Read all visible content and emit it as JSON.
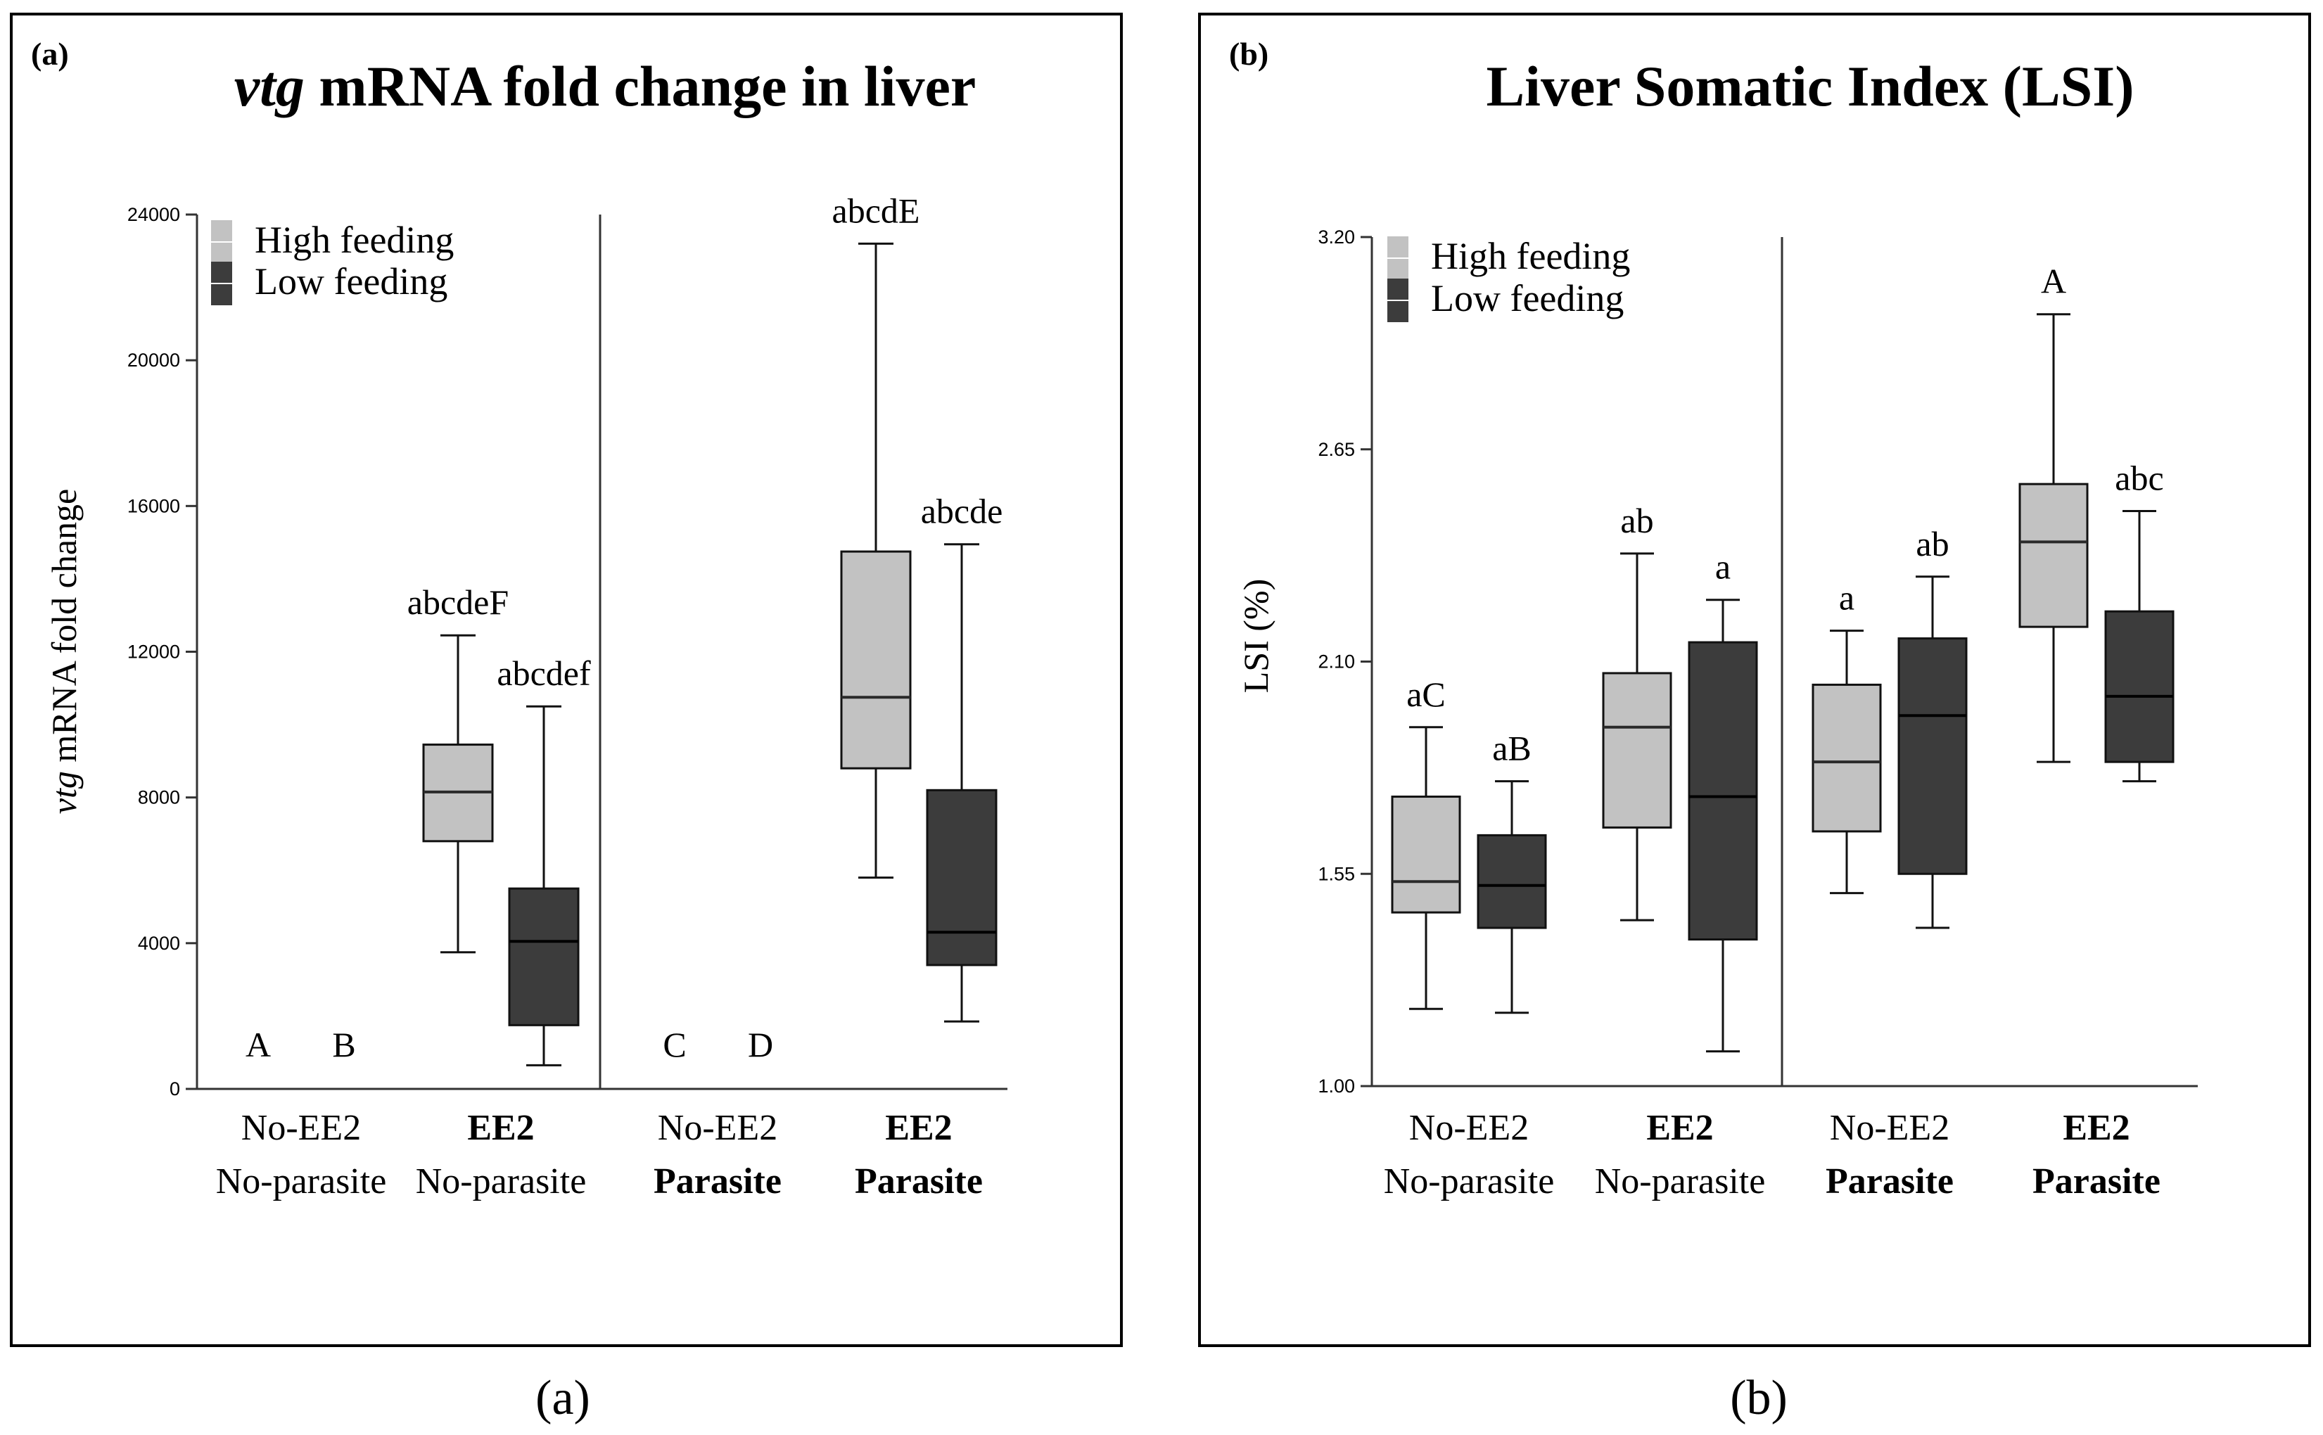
{
  "colors": {
    "high": "#c2c2c2",
    "low": "#3c3c3c",
    "frame": "#000000",
    "axis": "#333333"
  },
  "captions": [
    "(a)",
    "(b)"
  ],
  "chart_data": [
    {
      "type": "box",
      "panel_tag": "(a)",
      "title_italic": "vtg",
      "title_rest": " mRNA fold change in liver",
      "ylabel_italic": "vtg",
      "ylabel_rest": " mRNA fold change",
      "ylim": [
        0,
        24000
      ],
      "yticks": [
        0,
        4000,
        8000,
        12000,
        16000,
        20000,
        24000
      ],
      "legend": [
        "High feeding",
        "Low feeding"
      ],
      "groups": [
        {
          "line1": "No-EE2",
          "line2": "No-parasite",
          "bold1": false,
          "bold2": false
        },
        {
          "line1": "EE2",
          "line2": "No-parasite",
          "bold1": true,
          "bold2": false
        },
        {
          "line1": "No-EE2",
          "line2": "Parasite",
          "bold1": false,
          "bold2": true
        },
        {
          "line1": "EE2",
          "line2": "Parasite",
          "bold1": true,
          "bold2": true
        }
      ],
      "series": [
        {
          "name": "High feeding",
          "boxes": [
            {
              "box": null,
              "label": "A"
            },
            {
              "box": {
                "min": 3750,
                "q1": 6800,
                "median": 8150,
                "q3": 9450,
                "max": 12450
              },
              "label": "abcdeF"
            },
            {
              "box": null,
              "label": "C"
            },
            {
              "box": {
                "min": 5800,
                "q1": 8800,
                "median": 10750,
                "q3": 14750,
                "max": 23200
              },
              "label": "abcdE"
            }
          ]
        },
        {
          "name": "Low feeding",
          "boxes": [
            {
              "box": null,
              "label": "B"
            },
            {
              "box": {
                "min": 650,
                "q1": 1750,
                "median": 4050,
                "q3": 5500,
                "max": 10500
              },
              "label": "abcdef"
            },
            {
              "box": null,
              "label": "D"
            },
            {
              "box": {
                "min": 1850,
                "q1": 3400,
                "median": 4300,
                "q3": 8200,
                "max": 14950
              },
              "label": "abcde"
            }
          ]
        }
      ]
    },
    {
      "type": "box",
      "panel_tag": "(b)",
      "title_italic": "",
      "title_rest": "Liver Somatic Index (LSI)",
      "ylabel_italic": "",
      "ylabel_rest": "LSI (%)",
      "ylim": [
        1.0,
        3.2
      ],
      "yticks": [
        "1.00",
        "1.55",
        "2.10",
        "2.65",
        "3.20"
      ],
      "legend": [
        "High feeding",
        "Low feeding"
      ],
      "groups": [
        {
          "line1": "No-EE2",
          "line2": "No-parasite",
          "bold1": false,
          "bold2": false
        },
        {
          "line1": "EE2",
          "line2": "No-parasite",
          "bold1": true,
          "bold2": false
        },
        {
          "line1": "No-EE2",
          "line2": "Parasite",
          "bold1": false,
          "bold2": true
        },
        {
          "line1": "EE2",
          "line2": "Parasite",
          "bold1": true,
          "bold2": true
        }
      ],
      "series": [
        {
          "name": "High feeding",
          "boxes": [
            {
              "box": {
                "min": 1.2,
                "q1": 1.45,
                "median": 1.53,
                "q3": 1.75,
                "max": 1.93
              },
              "label": "aC"
            },
            {
              "box": {
                "min": 1.43,
                "q1": 1.67,
                "median": 1.93,
                "q3": 2.07,
                "max": 2.38
              },
              "label": "ab"
            },
            {
              "box": {
                "min": 1.5,
                "q1": 1.66,
                "median": 1.84,
                "q3": 2.04,
                "max": 2.18
              },
              "label": "a"
            },
            {
              "box": {
                "min": 1.84,
                "q1": 2.19,
                "median": 2.41,
                "q3": 2.56,
                "max": 3.0
              },
              "label": "A"
            }
          ]
        },
        {
          "name": "Low feeding",
          "boxes": [
            {
              "box": {
                "min": 1.19,
                "q1": 1.41,
                "median": 1.52,
                "q3": 1.65,
                "max": 1.79
              },
              "label": "aB"
            },
            {
              "box": {
                "min": 1.09,
                "q1": 1.38,
                "median": 1.75,
                "q3": 2.15,
                "max": 2.26
              },
              "label": "a"
            },
            {
              "box": {
                "min": 1.41,
                "q1": 1.55,
                "median": 1.96,
                "q3": 2.16,
                "max": 2.32
              },
              "label": "ab"
            },
            {
              "box": {
                "min": 1.79,
                "q1": 1.84,
                "median": 2.01,
                "q3": 2.23,
                "max": 2.49
              },
              "label": "abc"
            }
          ]
        }
      ]
    }
  ]
}
